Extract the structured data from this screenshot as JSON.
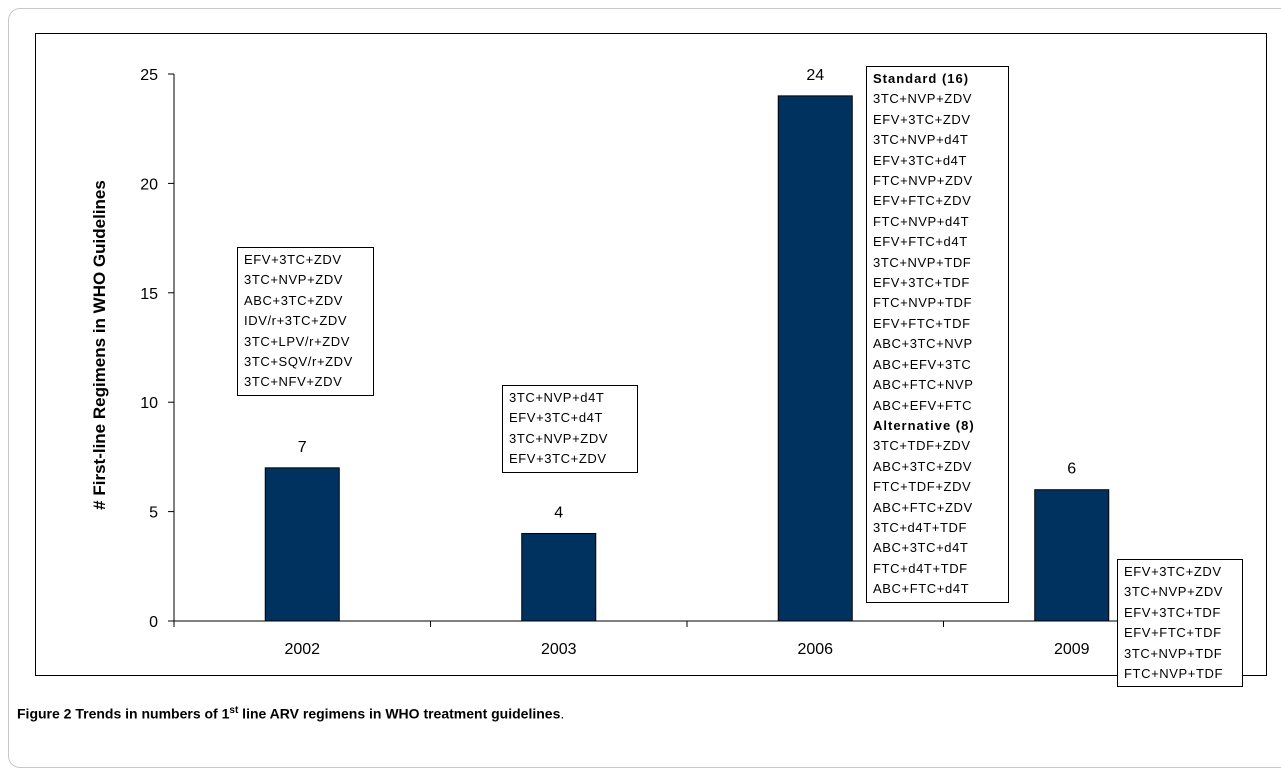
{
  "chart_data": {
    "type": "bar",
    "categories": [
      "2002",
      "2003",
      "2006",
      "2009"
    ],
    "values": [
      7,
      4,
      24,
      6
    ],
    "data_labels": [
      "7",
      "4",
      "24",
      "6"
    ],
    "ylabel": "# First-line Regimens in WHO Guidelines",
    "ylim": [
      0,
      25
    ],
    "yticks": [
      "0",
      "5",
      "10",
      "15",
      "20",
      "25"
    ],
    "bar_color": "#00325F",
    "grid": false,
    "legend": "none"
  },
  "regimen_boxes": {
    "y2002": [
      "EFV+3TC+ZDV",
      "3TC+NVP+ZDV",
      "ABC+3TC+ZDV",
      "IDV/r+3TC+ZDV",
      "3TC+LPV/r+ZDV",
      "3TC+SQV/r+ZDV",
      "3TC+NFV+ZDV"
    ],
    "y2003": [
      "3TC+NVP+d4T",
      "EFV+3TC+d4T",
      "3TC+NVP+ZDV",
      "EFV+3TC+ZDV"
    ],
    "y2006": {
      "standard_header": "Standard (16)",
      "standard": [
        "3TC+NVP+ZDV",
        "EFV+3TC+ZDV",
        "3TC+NVP+d4T",
        "EFV+3TC+d4T",
        "FTC+NVP+ZDV",
        "EFV+FTC+ZDV",
        "FTC+NVP+d4T",
        "EFV+FTC+d4T",
        "3TC+NVP+TDF",
        "EFV+3TC+TDF",
        "FTC+NVP+TDF",
        "EFV+FTC+TDF",
        "ABC+3TC+NVP",
        "ABC+EFV+3TC",
        "ABC+FTC+NVP",
        "ABC+EFV+FTC"
      ],
      "alternative_header": "Alternative (8)",
      "alternative": [
        "3TC+TDF+ZDV",
        "ABC+3TC+ZDV",
        "FTC+TDF+ZDV",
        "ABC+FTC+ZDV",
        "3TC+d4T+TDF",
        "ABC+3TC+d4T",
        "FTC+d4T+TDF",
        "ABC+FTC+d4T"
      ]
    },
    "y2009": [
      "EFV+3TC+ZDV",
      "3TC+NVP+ZDV",
      "EFV+3TC+TDF",
      "EFV+FTC+TDF",
      "3TC+NVP+TDF",
      "FTC+NVP+TDF"
    ]
  },
  "caption": {
    "label": "Figure 2",
    "text_before_sup": "Trends in numbers of 1",
    "sup": "st",
    "text_after_sup": " line ARV regimens in WHO treatment guidelines",
    "end": "."
  }
}
